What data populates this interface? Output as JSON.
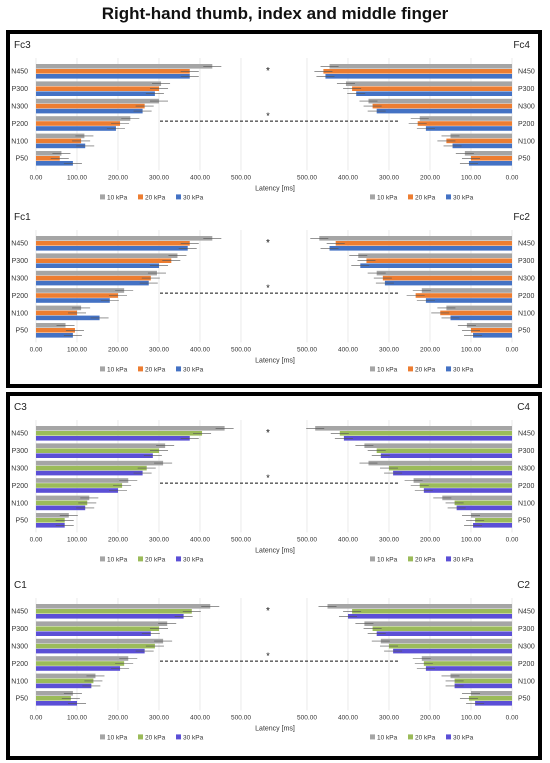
{
  "title": "Right-hand thumb, index and middle finger",
  "chart_data": [
    {
      "type": "bar",
      "orientation": "horizontal-mirrored",
      "left_label": "Fc3",
      "right_label": "Fc4",
      "categories": [
        "N450",
        "P300",
        "N300",
        "P200",
        "N100",
        "P50"
      ],
      "xlabel": "Latency [ms]",
      "xlim": [
        0,
        600
      ],
      "ticks": [
        "0.00",
        "100.00",
        "200.00",
        "300.00",
        "400.00",
        "500.00"
      ],
      "legend": [
        "10 kPa",
        "20 kPa",
        "30 kPa"
      ],
      "colors": [
        "#a5a5a5",
        "#ed7d31",
        "#4472c4"
      ],
      "left_series": [
        {
          "name": "10 kPa",
          "values": [
            430,
            305,
            300,
            230,
            118,
            62
          ]
        },
        {
          "name": "20 kPa",
          "values": [
            375,
            300,
            265,
            205,
            110,
            58
          ]
        },
        {
          "name": "30 kPa",
          "values": [
            375,
            290,
            260,
            195,
            120,
            90
          ]
        }
      ],
      "right_series": [
        {
          "name": "10 kPa",
          "values": [
            445,
            405,
            350,
            225,
            150,
            115
          ]
        },
        {
          "name": "20 kPa",
          "values": [
            460,
            390,
            340,
            230,
            160,
            100
          ]
        },
        {
          "name": "30 kPa",
          "values": [
            455,
            380,
            330,
            210,
            145,
            105
          ]
        }
      ],
      "annotations": [
        "*"
      ]
    },
    {
      "type": "bar",
      "orientation": "horizontal-mirrored",
      "left_label": "Fc1",
      "right_label": "Fc2",
      "categories": [
        "N450",
        "P300",
        "N300",
        "P200",
        "N100",
        "P50"
      ],
      "xlabel": "Latency [ms]",
      "xlim": [
        0,
        600
      ],
      "ticks": [
        "0.00",
        "100.00",
        "200.00",
        "300.00",
        "400.00",
        "500.00"
      ],
      "legend": [
        "10 kPa",
        "20 kPa",
        "30 kPa"
      ],
      "colors": [
        "#a5a5a5",
        "#ed7d31",
        "#4472c4"
      ],
      "left_series": [
        {
          "name": "10 kPa",
          "values": [
            430,
            345,
            295,
            215,
            110,
            72
          ]
        },
        {
          "name": "20 kPa",
          "values": [
            375,
            330,
            280,
            200,
            100,
            95
          ]
        },
        {
          "name": "30 kPa",
          "values": [
            370,
            300,
            275,
            180,
            155,
            90
          ]
        }
      ],
      "right_series": [
        {
          "name": "10 kPa",
          "values": [
            470,
            375,
            330,
            220,
            160,
            110
          ]
        },
        {
          "name": "20 kPa",
          "values": [
            430,
            355,
            315,
            235,
            175,
            100
          ]
        },
        {
          "name": "30 kPa",
          "values": [
            445,
            370,
            310,
            210,
            150,
            95
          ]
        }
      ],
      "annotations": [
        "*"
      ]
    },
    {
      "type": "bar",
      "orientation": "horizontal-mirrored",
      "left_label": "C3",
      "right_label": "C4",
      "categories": [
        "N450",
        "P300",
        "N300",
        "P200",
        "N100",
        "P50"
      ],
      "xlabel": "Latency [ms]",
      "xlim": [
        0,
        600
      ],
      "ticks": [
        "0.00",
        "100.00",
        "200.00",
        "300.00",
        "400.00",
        "500.00"
      ],
      "legend": [
        "10 kPa",
        "20 kPa",
        "30 kPa"
      ],
      "colors": [
        "#a5a5a5",
        "#9bbb59",
        "#5b4fd6"
      ],
      "left_series": [
        {
          "name": "10 kPa",
          "values": [
            460,
            315,
            310,
            225,
            130,
            80
          ]
        },
        {
          "name": "20 kPa",
          "values": [
            405,
            300,
            270,
            210,
            125,
            70
          ]
        },
        {
          "name": "30 kPa",
          "values": [
            375,
            285,
            260,
            200,
            120,
            70
          ]
        }
      ],
      "right_series": [
        {
          "name": "10 kPa",
          "values": [
            480,
            360,
            350,
            240,
            170,
            100
          ]
        },
        {
          "name": "20 kPa",
          "values": [
            420,
            330,
            300,
            225,
            140,
            90
          ]
        },
        {
          "name": "30 kPa",
          "values": [
            410,
            320,
            290,
            215,
            135,
            95
          ]
        }
      ],
      "annotations": [
        "*"
      ]
    },
    {
      "type": "bar",
      "orientation": "horizontal-mirrored",
      "left_label": "C1",
      "right_label": "C2",
      "categories": [
        "N450",
        "P300",
        "N300",
        "P200",
        "N100",
        "P50"
      ],
      "xlabel": "Latency [ms]",
      "xlim": [
        0,
        600
      ],
      "ticks": [
        "0.00",
        "100.00",
        "200.00",
        "300.00",
        "400.00",
        "500.00"
      ],
      "legend": [
        "10 kPa",
        "20 kPa",
        "30 kPa"
      ],
      "colors": [
        "#a5a5a5",
        "#9bbb59",
        "#5b4fd6"
      ],
      "left_series": [
        {
          "name": "10 kPa",
          "values": [
            425,
            320,
            310,
            225,
            145,
            90
          ]
        },
        {
          "name": "20 kPa",
          "values": [
            380,
            300,
            290,
            215,
            140,
            85
          ]
        },
        {
          "name": "30 kPa",
          "values": [
            360,
            280,
            265,
            205,
            135,
            100
          ]
        }
      ],
      "right_series": [
        {
          "name": "10 kPa",
          "values": [
            450,
            360,
            320,
            220,
            150,
            100
          ]
        },
        {
          "name": "20 kPa",
          "values": [
            390,
            340,
            300,
            215,
            140,
            105
          ]
        },
        {
          "name": "30 kPa",
          "values": [
            400,
            330,
            290,
            210,
            140,
            90
          ]
        }
      ],
      "annotations": [
        "*"
      ]
    }
  ]
}
